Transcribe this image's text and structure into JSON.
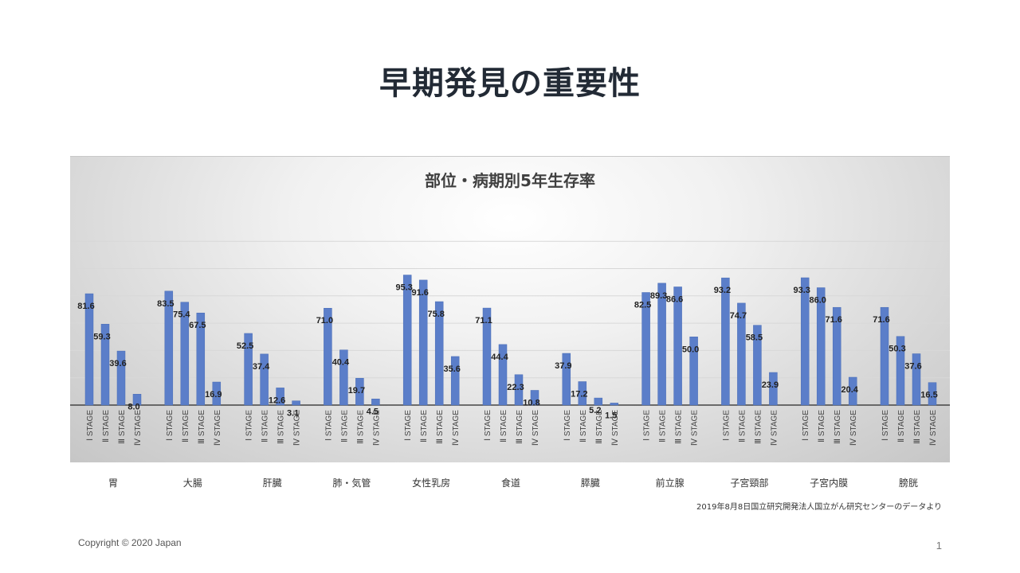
{
  "slide": {
    "title": "早期発見の重要性",
    "source": "2019年8月8日国立研究開発法人国立がん研究センターのデータより",
    "copyright": "Copyright © 2020 Japan",
    "page_number": "1"
  },
  "chart_data": {
    "type": "bar",
    "title": "部位・病期別5年生存率",
    "xlabel": "",
    "ylabel": "",
    "ylim": [
      0,
      120
    ],
    "grid": true,
    "legend": "none",
    "color": "#5b7ec9",
    "stage_labels": [
      "Ⅰ STAGE",
      "Ⅱ STAGE",
      "Ⅲ STAGE",
      "Ⅳ STAGE"
    ],
    "groups": [
      {
        "category": "胃",
        "values": [
          81.6,
          59.3,
          39.6,
          8.0
        ],
        "labels": [
          "81.6",
          "59.3",
          "39.6",
          "8.0"
        ]
      },
      {
        "category": "大腸",
        "values": [
          83.5,
          75.4,
          67.5,
          16.9
        ],
        "labels": [
          "83.5",
          "75.4",
          "67.5",
          "16.9"
        ]
      },
      {
        "category": "肝臓",
        "values": [
          52.5,
          37.4,
          12.6,
          3.1
        ],
        "labels": [
          "52.5",
          "37.4",
          "12.6",
          "3.1"
        ]
      },
      {
        "category": "肺・気管",
        "values": [
          71.0,
          40.4,
          19.7,
          4.5
        ],
        "labels": [
          "71.0",
          "40.4",
          "19.7",
          "4.5"
        ]
      },
      {
        "category": "女性乳房",
        "values": [
          95.3,
          91.6,
          75.8,
          35.6
        ],
        "labels": [
          "95.3",
          "91.6",
          "75.8",
          "35.6"
        ]
      },
      {
        "category": "食道",
        "values": [
          71.1,
          44.4,
          22.3,
          10.8
        ],
        "labels": [
          "71.1",
          "44.4",
          "22.3",
          "10.8"
        ]
      },
      {
        "category": "膵臓",
        "values": [
          37.9,
          17.2,
          5.2,
          1.5
        ],
        "labels": [
          "37.9",
          "17.2",
          "5.2",
          "1.5"
        ]
      },
      {
        "category": "前立腺",
        "values": [
          82.5,
          89.3,
          86.6,
          50.0
        ],
        "labels": [
          "82.5",
          "89.3",
          "86.6",
          "50.0"
        ]
      },
      {
        "category": "子宮頸部",
        "values": [
          93.2,
          74.7,
          58.5,
          23.9
        ],
        "labels": [
          "93.2",
          "74.7",
          "58.5",
          "23.9"
        ]
      },
      {
        "category": "子宮内膜",
        "values": [
          93.3,
          86.0,
          71.6,
          20.4
        ],
        "labels": [
          "93.3",
          "86.0",
          "71.6",
          "20.4"
        ]
      },
      {
        "category": "膀胱",
        "values": [
          71.6,
          50.3,
          37.6,
          16.5
        ],
        "labels": [
          "71.6",
          "50.3",
          "37.6",
          "16.5"
        ]
      }
    ]
  }
}
